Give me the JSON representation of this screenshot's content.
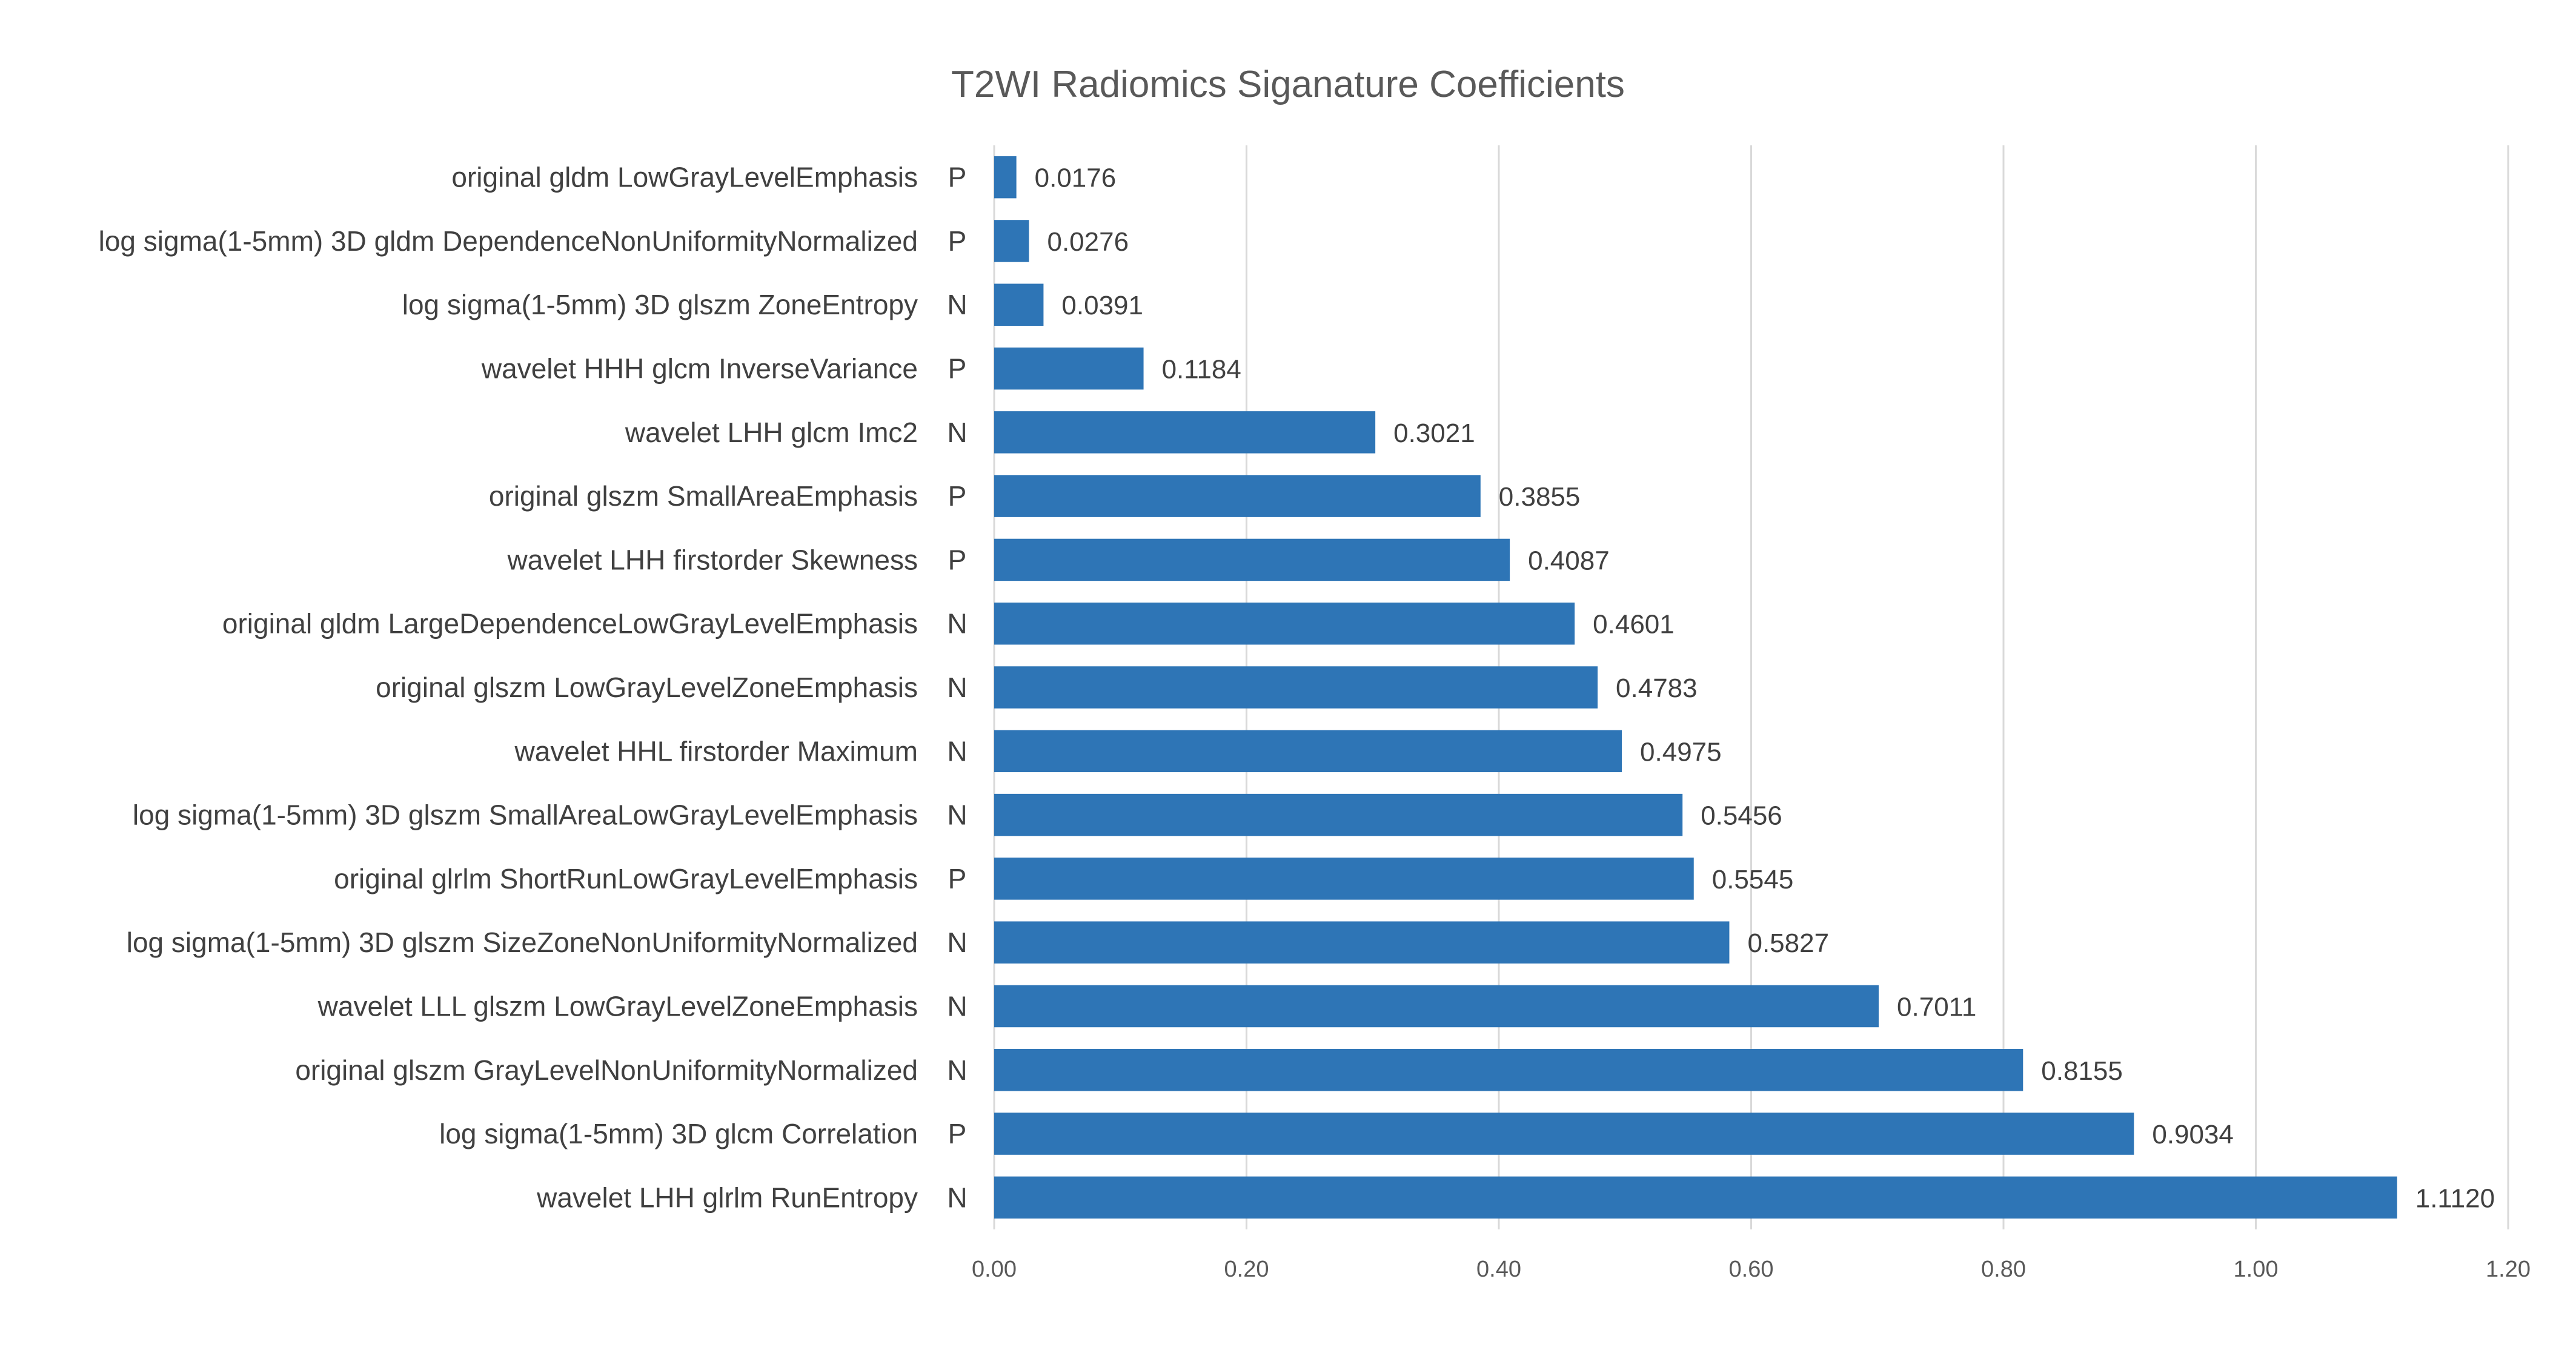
{
  "chart_data": {
    "type": "bar",
    "orientation": "horizontal",
    "title": "T2WI Radiomics Siganature Coefficients",
    "xlabel": "",
    "ylabel": "",
    "xlim": [
      0,
      1.2
    ],
    "x_ticks": [
      "0.00",
      "0.20",
      "0.40",
      "0.60",
      "0.80",
      "1.00",
      "1.20"
    ],
    "x_tick_values": [
      0,
      0.2,
      0.4,
      0.6,
      0.8,
      1.0,
      1.2
    ],
    "grid": "vertical",
    "bar_color": "#2E75B6",
    "categories": [
      "original gldm LowGrayLevelEmphasis",
      "log sigma(1-5mm) 3D gldm DependenceNonUniformityNormalized",
      "log sigma(1-5mm) 3D glszm ZoneEntropy",
      "wavelet HHH glcm InverseVariance",
      "wavelet LHH glcm Imc2",
      "original glszm SmallAreaEmphasis",
      "wavelet LHH firstorder Skewness",
      "original gldm LargeDependenceLowGrayLevelEmphasis",
      "original glszm LowGrayLevelZoneEmphasis",
      "wavelet HHL firstorder Maximum",
      "log sigma(1-5mm) 3D glszm SmallAreaLowGrayLevelEmphasis",
      "original glrlm ShortRunLowGrayLevelEmphasis",
      "log sigma(1-5mm) 3D glszm SizeZoneNonUniformityNormalized",
      "wavelet LLL glszm LowGrayLevelZoneEmphasis",
      "original glszm GrayLevelNonUniformityNormalized",
      "log sigma(1-5mm) 3D glcm Correlation",
      "wavelet LHH glrlm RunEntropy"
    ],
    "signs": [
      "P",
      "P",
      "N",
      "P",
      "N",
      "P",
      "P",
      "N",
      "N",
      "N",
      "N",
      "P",
      "N",
      "N",
      "N",
      "P",
      "N"
    ],
    "values": [
      0.0176,
      0.0276,
      0.0391,
      0.1184,
      0.3021,
      0.3855,
      0.4087,
      0.4601,
      0.4783,
      0.4975,
      0.5456,
      0.5545,
      0.5827,
      0.7011,
      0.8155,
      0.9034,
      1.112
    ],
    "value_labels": [
      "0.0176",
      "0.0276",
      "0.0391",
      "0.1184",
      "0.3021",
      "0.3855",
      "0.4087",
      "0.4601",
      "0.4783",
      "0.4975",
      "0.5456",
      "0.5545",
      "0.5827",
      "0.7011",
      "0.8155",
      "0.9034",
      "1.1120"
    ]
  }
}
